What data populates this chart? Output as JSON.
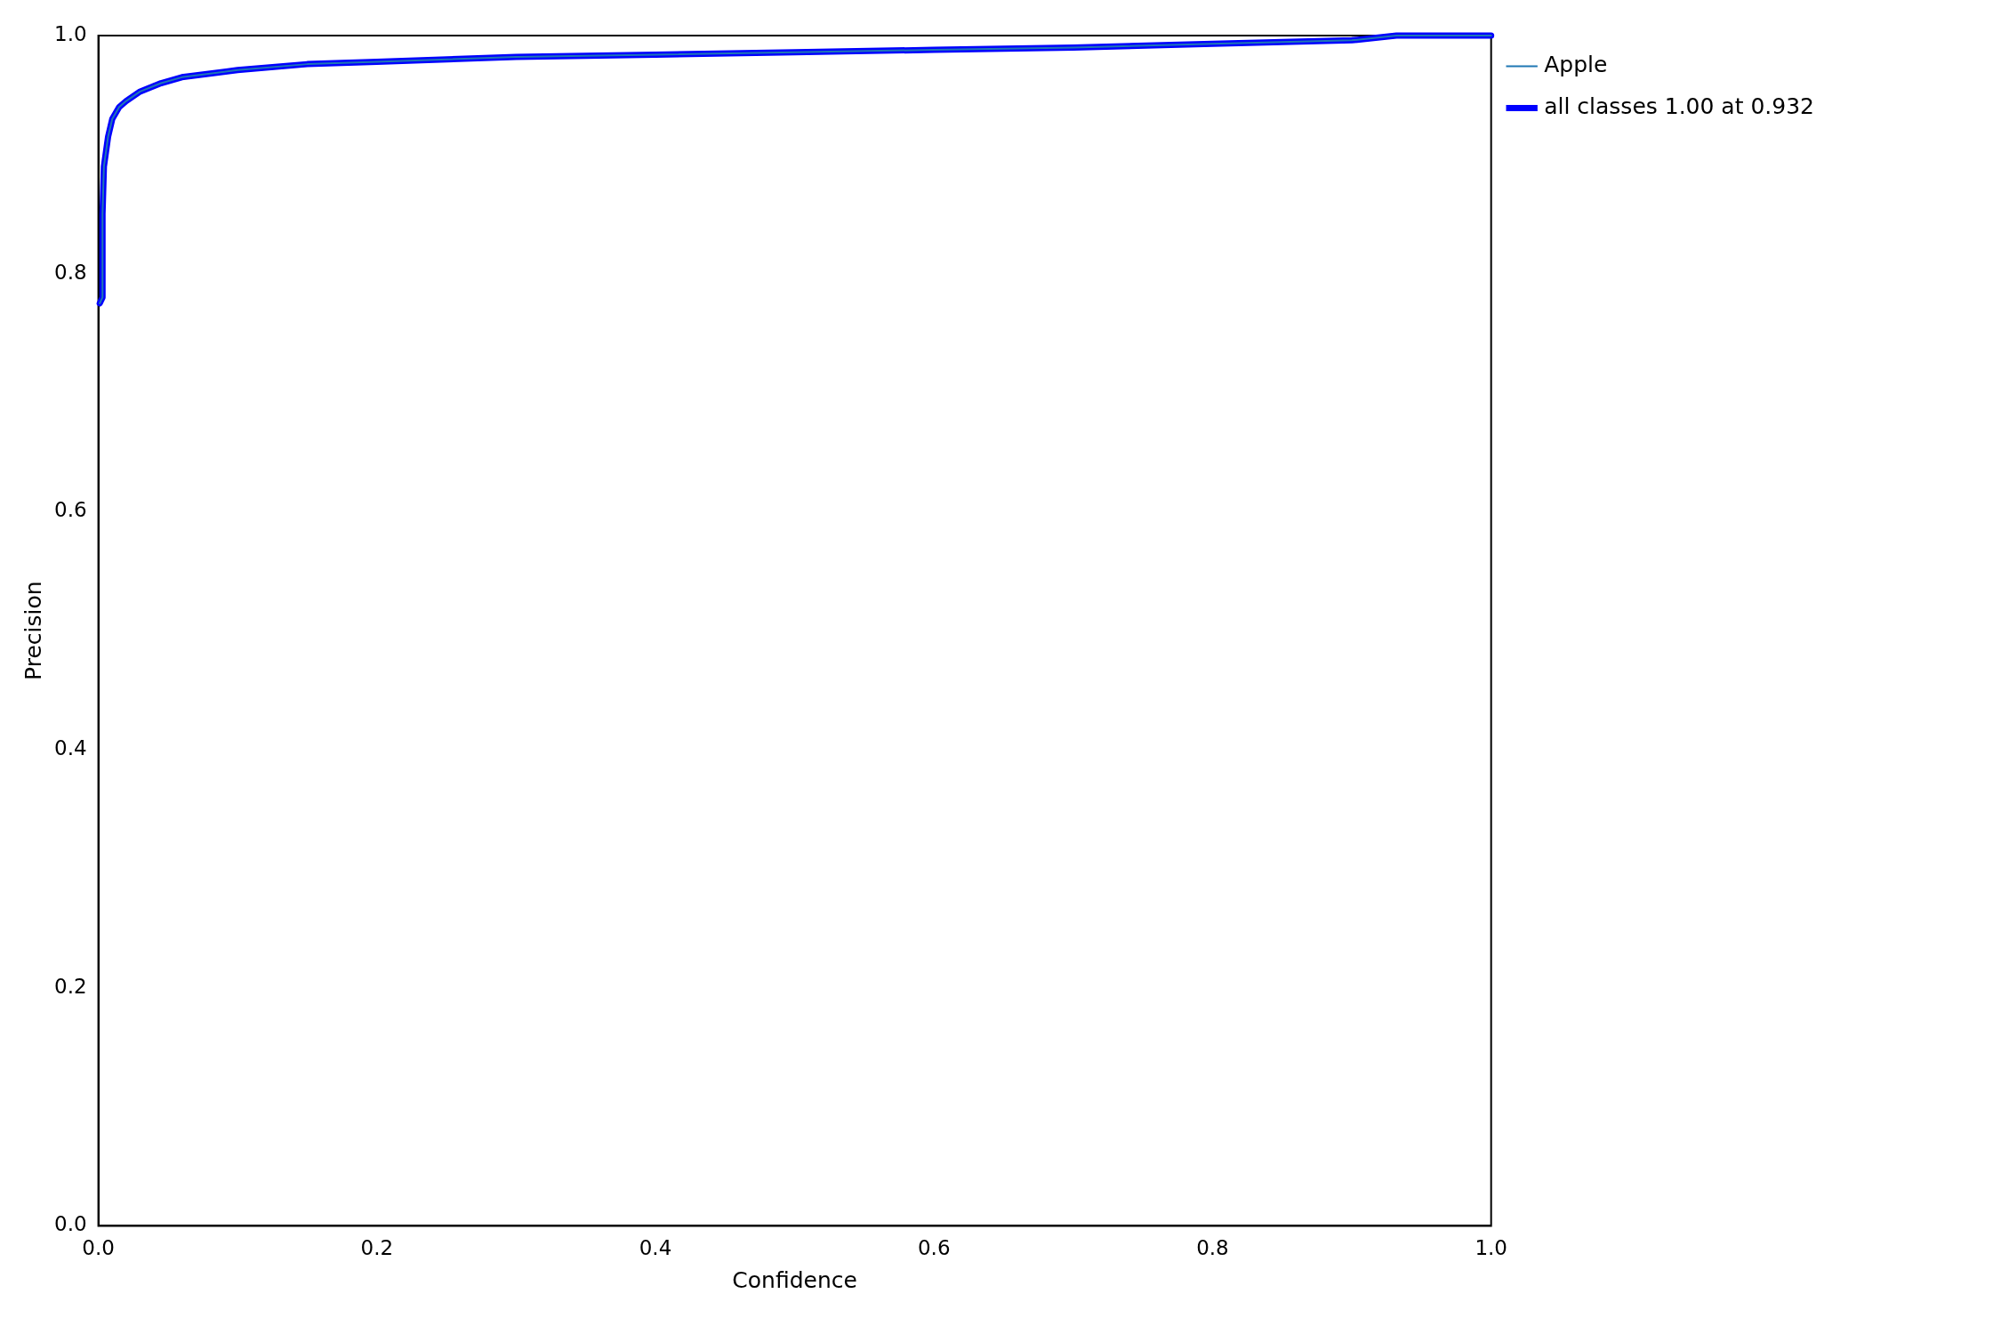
{
  "chart_data": {
    "type": "line",
    "xlabel": "Confidence",
    "ylabel": "Precision",
    "xlim": [
      0,
      1
    ],
    "ylim": [
      0,
      1
    ],
    "xticks": [
      {
        "value": 0,
        "label": "0.0"
      },
      {
        "value": 0.2,
        "label": "0.2"
      },
      {
        "value": 0.4,
        "label": "0.4"
      },
      {
        "value": 0.6,
        "label": "0.6"
      },
      {
        "value": 0.8,
        "label": "0.8"
      },
      {
        "value": 1,
        "label": "1.0"
      }
    ],
    "yticks": [
      {
        "value": 0,
        "label": "0.0"
      },
      {
        "value": 0.2,
        "label": "0.2"
      },
      {
        "value": 0.4,
        "label": "0.4"
      },
      {
        "value": 0.6,
        "label": "0.6"
      },
      {
        "value": 0.8,
        "label": "0.8"
      },
      {
        "value": 1,
        "label": "1.0"
      }
    ],
    "legend": "top right",
    "series": [
      {
        "name": "Apple",
        "color": "#1f77b4",
        "x": [
          0.001,
          0.003,
          0.003,
          0.004,
          0.007,
          0.01,
          0.015,
          0.02,
          0.03,
          0.045,
          0.06,
          0.1,
          0.15,
          0.2,
          0.3,
          0.4,
          0.5,
          0.6,
          0.7,
          0.8,
          0.9,
          0.932,
          1.0
        ],
        "values": [
          0.775,
          0.78,
          0.85,
          0.89,
          0.915,
          0.93,
          0.94,
          0.945,
          0.953,
          0.96,
          0.965,
          0.971,
          0.976,
          0.978,
          0.982,
          0.984,
          0.986,
          0.988,
          0.99,
          0.993,
          0.996,
          1.0,
          1.0
        ]
      },
      {
        "name": "all classes 1.00 at 0.932",
        "color": "#0000ff",
        "x": [
          0.001,
          0.003,
          0.003,
          0.004,
          0.007,
          0.01,
          0.015,
          0.02,
          0.03,
          0.045,
          0.06,
          0.1,
          0.15,
          0.2,
          0.3,
          0.4,
          0.5,
          0.6,
          0.7,
          0.8,
          0.9,
          0.932,
          1.0
        ],
        "values": [
          0.775,
          0.78,
          0.85,
          0.89,
          0.915,
          0.93,
          0.94,
          0.945,
          0.953,
          0.96,
          0.965,
          0.971,
          0.976,
          0.978,
          0.982,
          0.984,
          0.986,
          0.988,
          0.99,
          0.993,
          0.996,
          1.0,
          1.0
        ]
      }
    ]
  }
}
